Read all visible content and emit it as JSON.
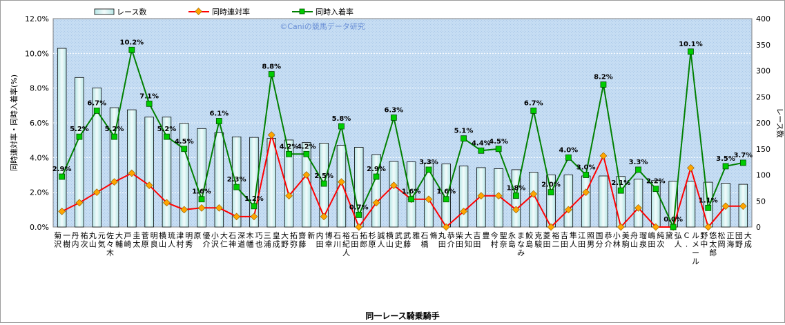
{
  "chart_data": {
    "type": "bar+line",
    "watermark": "©Caniの競馬データ研究",
    "xlabel": "同一レース騎乗騎手",
    "ylabel_left": "同時連対率・同時入着率(%)",
    "ylabel_right": "レース数",
    "ylim_left": [
      0,
      12
    ],
    "ylim_right": [
      0,
      400
    ],
    "yticks_left": [
      "0.0%",
      "2.0%",
      "4.0%",
      "6.0%",
      "8.0%",
      "10.0%",
      "12.0%"
    ],
    "yticks_right": [
      "0",
      "50",
      "100",
      "150",
      "200",
      "250",
      "300",
      "350",
      "400"
    ],
    "grid": true,
    "legend_position": "top",
    "categories": [
      "菊沢 一樹",
      "丹内 祐次",
      "丸山 元気",
      "佐々木 大輔",
      "戸崎 圭太",
      "菅原 明良",
      "横山 琉人",
      "津村 明秀",
      "原 優介",
      "小沢 大仁",
      "石神 深道",
      "木幡 巧也",
      "三浦 皇成",
      "大野 拓弥",
      "齋藤 新",
      "内田 博幸",
      "石川 裕紀人",
      "石田 拓郎",
      "杉原 誠人",
      "横山 武史",
      "武藤 雅",
      "石橋 脩",
      "丸田 恭介",
      "柴田 大知",
      "吉田 豊",
      "今村 聖奈",
      "永島 まなみ",
      "鮫島 克駿",
      "菱田 裕二",
      "吉田 隼人",
      "江田 照男",
      "国分 恭介",
      "小林 美駒",
      "舟山 瑠泉",
      "嶋田 純次",
      "黛 弘人",
      "C. ルメール",
      "野中 悠太郎",
      "松岡 正海",
      "団野 大成"
    ],
    "series": [
      {
        "name": "レース数",
        "kind": "bar",
        "axis": "right",
        "color": "#d9f2f0",
        "values": [
          343,
          287,
          267,
          229,
          225,
          211,
          211,
          199,
          189,
          181,
          173,
          172,
          170,
          167,
          162,
          161,
          157,
          153,
          139,
          126,
          125,
          123,
          121,
          117,
          114,
          112,
          110,
          105,
          100,
          100,
          98,
          98,
          97,
          92,
          89,
          88,
          88,
          86,
          84,
          82
        ]
      },
      {
        "name": "同時連対率",
        "kind": "line",
        "axis": "left",
        "color": "#ff0000",
        "marker": "#ffa500",
        "values": [
          0.9,
          1.4,
          2.0,
          2.6,
          3.1,
          2.4,
          1.4,
          1.0,
          1.1,
          1.1,
          0.6,
          0.6,
          5.3,
          1.8,
          3.0,
          0.6,
          2.6,
          0.0,
          1.4,
          2.4,
          1.6,
          1.6,
          0.0,
          0.9,
          1.8,
          1.8,
          1.0,
          1.9,
          0.0,
          1.0,
          2.0,
          4.1,
          0.0,
          1.1,
          0.0,
          0.0,
          3.4,
          0.0,
          1.2,
          1.2
        ]
      },
      {
        "name": "同時入着率",
        "kind": "line",
        "axis": "left",
        "color": "#008000",
        "marker": "#00cc00",
        "values": [
          2.9,
          5.2,
          6.7,
          5.2,
          10.2,
          7.1,
          5.2,
          4.5,
          1.6,
          6.1,
          2.3,
          1.2,
          8.8,
          4.2,
          4.2,
          2.5,
          5.8,
          0.7,
          2.9,
          6.3,
          1.6,
          3.3,
          1.6,
          5.1,
          4.4,
          4.5,
          1.8,
          6.7,
          2.0,
          4.0,
          3.0,
          8.2,
          2.1,
          3.3,
          2.2,
          0.0,
          10.1,
          1.1,
          3.5,
          3.7
        ]
      }
    ],
    "data_labels": [
      "2.9%",
      "5.2%",
      "6.7%",
      "5.2%",
      "10.2%",
      "7.1%",
      "5.2%",
      "4.5%",
      "1.6%",
      "6.1%",
      "2.3%",
      "1.2%",
      "8.8%",
      "4.2%",
      "4.2%",
      "2.5%",
      "5.8%",
      "0.7%",
      "2.9%",
      "6.3%",
      "1.6%",
      "3.3%",
      "1.6%",
      "5.1%",
      "4.4%",
      "4.5%",
      "1.8%",
      "6.7%",
      "2.0%",
      "4.0%",
      "3.0%",
      "8.2%",
      "2.1%",
      "3.3%",
      "2.2%",
      "0.0%",
      "10.1%",
      "1.1%",
      "3.5%",
      "3.7%"
    ]
  }
}
